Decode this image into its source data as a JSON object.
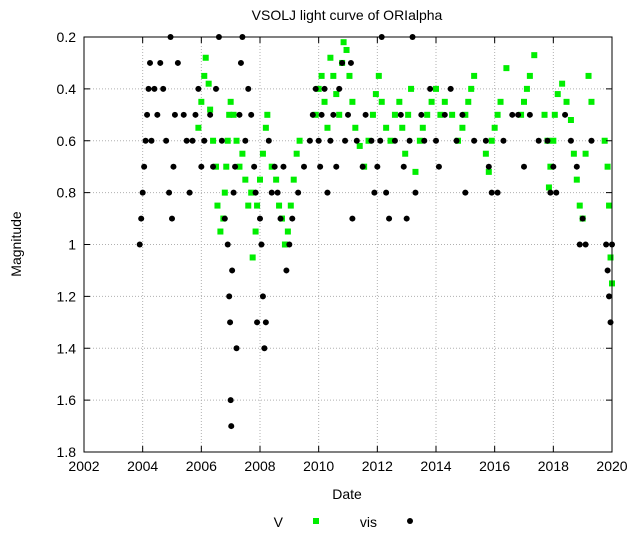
{
  "chart_data": {
    "type": "scatter",
    "title": "VSOLJ light curve of ORIalpha",
    "xlabel": "Date",
    "ylabel": "Magnitude",
    "xlim": [
      2002,
      2020
    ],
    "ylim": [
      0.2,
      1.8
    ],
    "y_inverted": true,
    "xticks": [
      "2002",
      "2004",
      "2006",
      "2008",
      "2010",
      "2012",
      "2014",
      "2016",
      "2018",
      "2020"
    ],
    "yticks": [
      "0.2",
      "0.4",
      "0.6",
      "0.8",
      "1",
      "1.2",
      "1.4",
      "1.6",
      "1.8"
    ],
    "grid": true,
    "legend_position": "bottom",
    "series": [
      {
        "name": "V",
        "marker": "square",
        "color": "#00ee00",
        "points": [
          [
            2005.9,
            0.55
          ],
          [
            2006.0,
            0.45
          ],
          [
            2006.1,
            0.35
          ],
          [
            2006.15,
            0.28
          ],
          [
            2006.25,
            0.38
          ],
          [
            2006.3,
            0.48
          ],
          [
            2006.4,
            0.6
          ],
          [
            2006.5,
            0.7
          ],
          [
            2006.55,
            0.85
          ],
          [
            2006.65,
            0.95
          ],
          [
            2006.75,
            0.9
          ],
          [
            2006.8,
            0.8
          ],
          [
            2006.85,
            0.7
          ],
          [
            2006.9,
            0.6
          ],
          [
            2006.95,
            0.5
          ],
          [
            2007.0,
            0.45
          ],
          [
            2007.1,
            0.5
          ],
          [
            2007.2,
            0.6
          ],
          [
            2007.3,
            0.7
          ],
          [
            2007.4,
            0.65
          ],
          [
            2007.5,
            0.75
          ],
          [
            2007.6,
            0.85
          ],
          [
            2007.7,
            0.8
          ],
          [
            2007.75,
            1.05
          ],
          [
            2007.85,
            0.95
          ],
          [
            2007.9,
            0.85
          ],
          [
            2008.0,
            0.75
          ],
          [
            2008.1,
            0.65
          ],
          [
            2008.2,
            0.55
          ],
          [
            2008.25,
            0.5
          ],
          [
            2008.4,
            0.7
          ],
          [
            2008.55,
            0.75
          ],
          [
            2008.65,
            0.85
          ],
          [
            2008.75,
            0.9
          ],
          [
            2008.85,
            1.0
          ],
          [
            2008.95,
            0.95
          ],
          [
            2009.05,
            0.85
          ],
          [
            2009.15,
            0.75
          ],
          [
            2009.25,
            0.65
          ],
          [
            2009.35,
            0.6
          ],
          [
            2009.9,
            0.5
          ],
          [
            2010.0,
            0.4
          ],
          [
            2010.1,
            0.35
          ],
          [
            2010.2,
            0.45
          ],
          [
            2010.3,
            0.55
          ],
          [
            2010.4,
            0.28
          ],
          [
            2010.5,
            0.35
          ],
          [
            2010.6,
            0.42
          ],
          [
            2010.7,
            0.5
          ],
          [
            2010.8,
            0.3
          ],
          [
            2010.85,
            0.22
          ],
          [
            2010.95,
            0.25
          ],
          [
            2011.05,
            0.35
          ],
          [
            2011.15,
            0.45
          ],
          [
            2011.25,
            0.55
          ],
          [
            2011.4,
            0.62
          ],
          [
            2011.55,
            0.7
          ],
          [
            2011.7,
            0.6
          ],
          [
            2011.85,
            0.5
          ],
          [
            2011.95,
            0.42
          ],
          [
            2012.05,
            0.35
          ],
          [
            2012.15,
            0.45
          ],
          [
            2012.3,
            0.55
          ],
          [
            2012.45,
            0.6
          ],
          [
            2012.6,
            0.5
          ],
          [
            2012.75,
            0.45
          ],
          [
            2012.85,
            0.55
          ],
          [
            2012.95,
            0.65
          ],
          [
            2013.05,
            0.5
          ],
          [
            2013.15,
            0.4
          ],
          [
            2013.3,
            0.72
          ],
          [
            2013.45,
            0.6
          ],
          [
            2013.55,
            0.55
          ],
          [
            2013.7,
            0.5
          ],
          [
            2013.85,
            0.45
          ],
          [
            2014.0,
            0.4
          ],
          [
            2014.15,
            0.5
          ],
          [
            2014.3,
            0.45
          ],
          [
            2014.55,
            0.5
          ],
          [
            2014.75,
            0.6
          ],
          [
            2014.9,
            0.55
          ],
          [
            2015.0,
            0.5
          ],
          [
            2015.1,
            0.45
          ],
          [
            2015.2,
            0.4
          ],
          [
            2015.3,
            0.35
          ],
          [
            2015.7,
            0.65
          ],
          [
            2015.8,
            0.72
          ],
          [
            2015.9,
            0.6
          ],
          [
            2016.0,
            0.55
          ],
          [
            2016.1,
            0.5
          ],
          [
            2016.2,
            0.45
          ],
          [
            2016.4,
            0.32
          ],
          [
            2016.9,
            0.5
          ],
          [
            2017.0,
            0.45
          ],
          [
            2017.1,
            0.4
          ],
          [
            2017.2,
            0.35
          ],
          [
            2017.35,
            0.27
          ],
          [
            2017.7,
            0.5
          ],
          [
            2017.8,
            0.6
          ],
          [
            2017.85,
            0.78
          ],
          [
            2017.9,
            0.7
          ],
          [
            2018.0,
            0.6
          ],
          [
            2018.05,
            0.5
          ],
          [
            2018.15,
            0.42
          ],
          [
            2018.3,
            0.38
          ],
          [
            2018.45,
            0.45
          ],
          [
            2018.6,
            0.52
          ],
          [
            2018.7,
            0.65
          ],
          [
            2018.8,
            0.75
          ],
          [
            2018.9,
            0.85
          ],
          [
            2019.0,
            0.9
          ],
          [
            2019.1,
            0.65
          ],
          [
            2019.2,
            0.35
          ],
          [
            2019.3,
            0.45
          ],
          [
            2019.75,
            0.6
          ],
          [
            2019.85,
            0.7
          ],
          [
            2019.9,
            0.85
          ],
          [
            2019.95,
            1.05
          ],
          [
            2020.0,
            1.15
          ]
        ]
      },
      {
        "name": "vis",
        "marker": "circle",
        "color": "#000000",
        "points": [
          [
            2003.9,
            1.0
          ],
          [
            2003.95,
            0.9
          ],
          [
            2004.0,
            0.8
          ],
          [
            2004.05,
            0.7
          ],
          [
            2004.1,
            0.6
          ],
          [
            2004.15,
            0.5
          ],
          [
            2004.2,
            0.4
          ],
          [
            2004.25,
            0.3
          ],
          [
            2004.3,
            0.6
          ],
          [
            2004.4,
            0.4
          ],
          [
            2004.5,
            0.5
          ],
          [
            2004.6,
            0.3
          ],
          [
            2004.7,
            0.4
          ],
          [
            2004.8,
            0.6
          ],
          [
            2004.9,
            0.8
          ],
          [
            2004.95,
            0.2
          ],
          [
            2005.0,
            0.9
          ],
          [
            2005.05,
            0.7
          ],
          [
            2005.1,
            0.5
          ],
          [
            2005.2,
            0.3
          ],
          [
            2005.4,
            0.5
          ],
          [
            2005.5,
            0.6
          ],
          [
            2005.6,
            0.8
          ],
          [
            2005.7,
            0.6
          ],
          [
            2005.8,
            0.5
          ],
          [
            2005.9,
            0.4
          ],
          [
            2006.0,
            0.7
          ],
          [
            2006.1,
            0.6
          ],
          [
            2006.3,
            0.5
          ],
          [
            2006.4,
            0.7
          ],
          [
            2006.5,
            0.4
          ],
          [
            2006.6,
            0.2
          ],
          [
            2006.7,
            0.6
          ],
          [
            2006.8,
            0.9
          ],
          [
            2006.9,
            1.0
          ],
          [
            2006.95,
            1.2
          ],
          [
            2006.98,
            1.3
          ],
          [
            2007.0,
            1.6
          ],
          [
            2007.02,
            1.7
          ],
          [
            2007.05,
            1.1
          ],
          [
            2007.1,
            0.8
          ],
          [
            2007.15,
            0.7
          ],
          [
            2007.2,
            1.4
          ],
          [
            2007.3,
            0.5
          ],
          [
            2007.35,
            0.3
          ],
          [
            2007.4,
            0.2
          ],
          [
            2007.5,
            0.6
          ],
          [
            2007.6,
            0.4
          ],
          [
            2007.7,
            0.5
          ],
          [
            2007.8,
            0.7
          ],
          [
            2007.85,
            0.8
          ],
          [
            2007.9,
            1.3
          ],
          [
            2008.0,
            0.9
          ],
          [
            2008.05,
            1.0
          ],
          [
            2008.1,
            1.2
          ],
          [
            2008.15,
            1.4
          ],
          [
            2008.2,
            1.3
          ],
          [
            2008.3,
            0.6
          ],
          [
            2008.4,
            0.8
          ],
          [
            2008.5,
            0.7
          ],
          [
            2008.6,
            0.8
          ],
          [
            2008.7,
            0.9
          ],
          [
            2008.8,
            0.7
          ],
          [
            2008.9,
            1.1
          ],
          [
            2009.0,
            1.0
          ],
          [
            2009.1,
            0.9
          ],
          [
            2009.3,
            0.8
          ],
          [
            2009.5,
            0.7
          ],
          [
            2009.7,
            0.6
          ],
          [
            2009.8,
            0.5
          ],
          [
            2009.9,
            0.4
          ],
          [
            2010.0,
            0.6
          ],
          [
            2010.05,
            0.7
          ],
          [
            2010.1,
            0.5
          ],
          [
            2010.2,
            0.4
          ],
          [
            2010.3,
            0.8
          ],
          [
            2010.4,
            0.6
          ],
          [
            2010.5,
            0.5
          ],
          [
            2010.6,
            0.7
          ],
          [
            2010.7,
            0.4
          ],
          [
            2010.8,
            0.3
          ],
          [
            2010.9,
            0.6
          ],
          [
            2011.0,
            0.5
          ],
          [
            2011.1,
            0.3
          ],
          [
            2011.15,
            0.9
          ],
          [
            2011.3,
            0.6
          ],
          [
            2011.5,
            0.7
          ],
          [
            2011.6,
            0.5
          ],
          [
            2011.8,
            0.6
          ],
          [
            2011.9,
            0.8
          ],
          [
            2012.0,
            0.7
          ],
          [
            2012.1,
            0.6
          ],
          [
            2012.15,
            0.2
          ],
          [
            2012.3,
            0.8
          ],
          [
            2012.4,
            0.9
          ],
          [
            2012.6,
            0.6
          ],
          [
            2012.8,
            0.5
          ],
          [
            2012.9,
            0.7
          ],
          [
            2013.0,
            0.9
          ],
          [
            2013.1,
            0.6
          ],
          [
            2013.2,
            0.2
          ],
          [
            2013.3,
            0.8
          ],
          [
            2013.5,
            0.5
          ],
          [
            2013.6,
            0.6
          ],
          [
            2013.8,
            0.4
          ],
          [
            2014.0,
            0.6
          ],
          [
            2014.1,
            0.7
          ],
          [
            2014.3,
            0.5
          ],
          [
            2014.5,
            0.4
          ],
          [
            2014.7,
            0.6
          ],
          [
            2014.9,
            0.5
          ],
          [
            2015.0,
            0.8
          ],
          [
            2015.3,
            0.6
          ],
          [
            2015.7,
            0.6
          ],
          [
            2015.8,
            0.7
          ],
          [
            2015.9,
            0.8
          ],
          [
            2016.1,
            0.8
          ],
          [
            2016.3,
            0.6
          ],
          [
            2016.6,
            0.5
          ],
          [
            2016.8,
            0.5
          ],
          [
            2017.0,
            0.7
          ],
          [
            2017.2,
            0.5
          ],
          [
            2017.5,
            0.6
          ],
          [
            2017.8,
            0.6
          ],
          [
            2017.9,
            0.8
          ],
          [
            2018.0,
            0.7
          ],
          [
            2018.1,
            0.8
          ],
          [
            2018.4,
            0.5
          ],
          [
            2018.6,
            0.6
          ],
          [
            2018.8,
            0.7
          ],
          [
            2018.9,
            1.0
          ],
          [
            2019.0,
            0.9
          ],
          [
            2019.1,
            1.0
          ],
          [
            2019.3,
            0.6
          ],
          [
            2019.8,
            1.0
          ],
          [
            2019.85,
            1.1
          ],
          [
            2019.9,
            1.2
          ],
          [
            2019.95,
            1.3
          ],
          [
            2020.0,
            1.0
          ]
        ]
      }
    ]
  }
}
